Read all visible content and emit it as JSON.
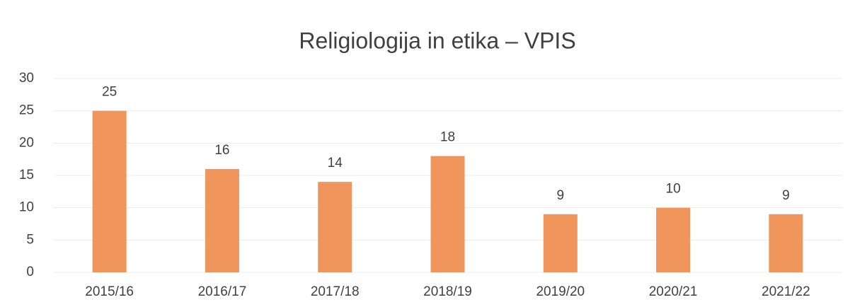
{
  "chart_data": {
    "type": "bar",
    "title": "Religiologija in etika – VPIS",
    "categories": [
      "2015/16",
      "2016/17",
      "2017/18",
      "2018/19",
      "2019/20",
      "2020/21",
      "2021/22"
    ],
    "values": [
      25,
      16,
      14,
      18,
      9,
      10,
      9
    ],
    "color": "#f0965c",
    "ylim": [
      0,
      30
    ],
    "yticks": [
      0,
      5,
      10,
      15,
      20,
      25,
      30
    ],
    "grid": true
  }
}
